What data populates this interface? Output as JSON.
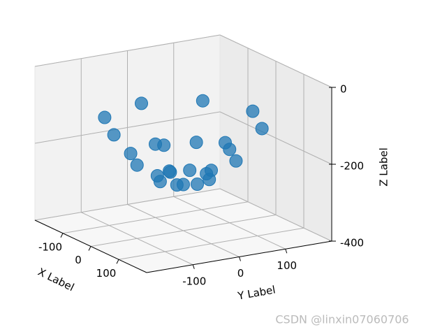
{
  "chart_data": {
    "type": "scatter3d",
    "xlabel": "X Label",
    "ylabel": "Y Label",
    "zlabel": "Z Label",
    "xlim": [
      -200,
      200
    ],
    "ylim": [
      -200,
      200
    ],
    "zlim": [
      -400,
      0
    ],
    "xticks": [
      -100,
      0,
      100
    ],
    "yticks": [
      -100,
      0,
      100
    ],
    "zticks": [
      -400,
      -200,
      0
    ],
    "grid": true,
    "color": "#1f77b4",
    "x": [
      0,
      50,
      35,
      0,
      -35,
      -50,
      -35,
      0,
      35,
      100,
      71,
      0,
      -71,
      -100,
      -71,
      0,
      71,
      150,
      106,
      0,
      -106,
      -150,
      -106,
      0,
      106
    ],
    "y": [
      0,
      0,
      35,
      50,
      35,
      0,
      -35,
      -50,
      -35,
      0,
      71,
      100,
      71,
      0,
      -71,
      -100,
      -71,
      0,
      106,
      150,
      106,
      0,
      -106,
      -150,
      -106
    ],
    "z": [
      -280,
      -262,
      -262,
      -262,
      -262,
      -262,
      -262,
      -262,
      -262,
      -209,
      -209,
      -209,
      -209,
      -209,
      -209,
      -209,
      -209,
      -120,
      -120,
      -120,
      -120,
      -120,
      -120,
      -120,
      -120
    ],
    "watermark": "CSDN @linxin07060706"
  }
}
